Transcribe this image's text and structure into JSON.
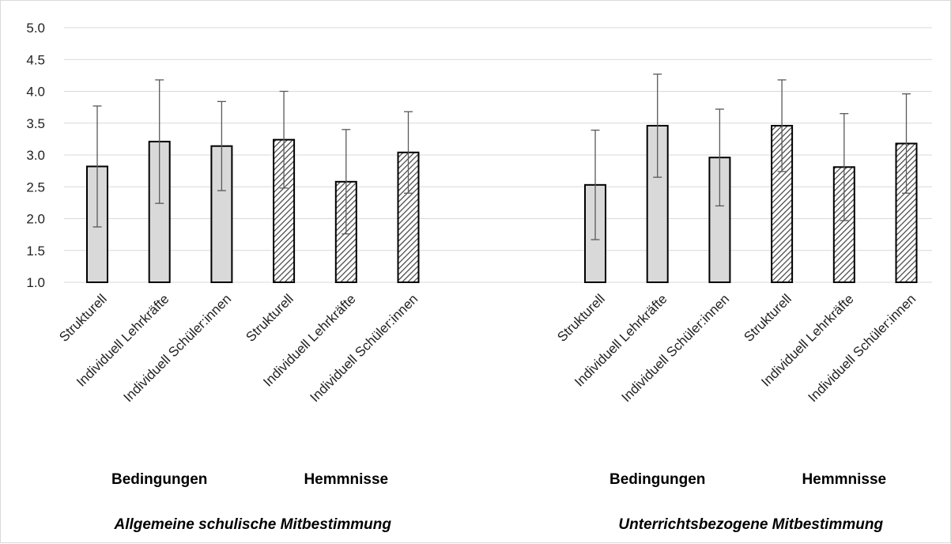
{
  "chart_data": {
    "type": "bar",
    "ylim": [
      1.0,
      5.0
    ],
    "yticks": [
      "1.0",
      "1.5",
      "2.0",
      "2.5",
      "3.0",
      "3.5",
      "4.0",
      "4.5",
      "5.0"
    ],
    "grid": true,
    "sections": [
      {
        "label": "Allgemeine schulische Mitbestimmung",
        "groups": [
          {
            "label": "Bedingungen",
            "pattern": "solid",
            "categories": [
              "Strukturell",
              "Individuell Lehrkräfte",
              "Individuell Schüler:innen"
            ],
            "values": [
              2.82,
              3.21,
              3.14
            ],
            "error": [
              0.95,
              0.97,
              0.7
            ]
          },
          {
            "label": "Hemmnisse",
            "pattern": "hatched",
            "categories": [
              "Strukturell",
              "Individuell Lehrkräfte",
              "Individuell Schüler:innen"
            ],
            "values": [
              3.24,
              2.58,
              3.04
            ],
            "error": [
              0.76,
              0.82,
              0.64
            ]
          }
        ]
      },
      {
        "label": "Unterrichtsbezogene Mitbestimmung",
        "groups": [
          {
            "label": "Bedingungen",
            "pattern": "solid",
            "categories": [
              "Strukturell",
              "Individuell Lehrkräfte",
              "Individuell Schüler:innen"
            ],
            "values": [
              2.53,
              3.46,
              2.96
            ],
            "error": [
              0.86,
              0.81,
              0.76
            ]
          },
          {
            "label": "Hemmnisse",
            "pattern": "hatched",
            "categories": [
              "Strukturell",
              "Individuell Lehrkräfte",
              "Individuell Schüler:innen"
            ],
            "values": [
              3.46,
              2.81,
              3.18
            ],
            "error": [
              0.72,
              0.84,
              0.78
            ]
          }
        ]
      }
    ],
    "colors": {
      "bar_fill": "#d9d9d9",
      "bar_stroke": "#000000",
      "hatch": "#404040",
      "grid": "#d9d9d9",
      "error_bar": "#595959"
    }
  }
}
